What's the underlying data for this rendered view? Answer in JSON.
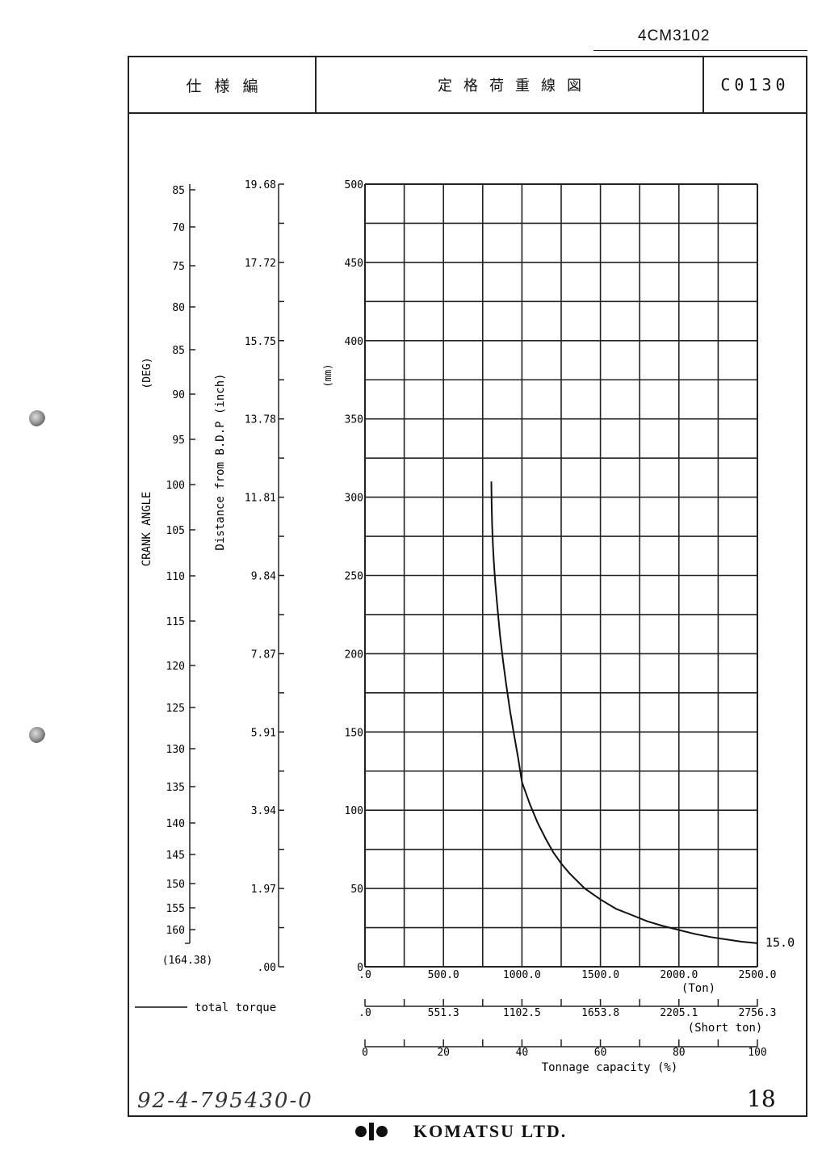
{
  "document": {
    "ref_number": "4CM3102",
    "category": "仕様編",
    "title": "定格荷重線図",
    "code": "C0130",
    "handwritten_number": "92-4-795430-0",
    "page_number": "18",
    "company": "KOMATSU LTD."
  },
  "chart_data": {
    "type": "line",
    "x": [
      805,
      807,
      810,
      815,
      820,
      830,
      845,
      860,
      880,
      900,
      925,
      950,
      975,
      1000,
      1050,
      1100,
      1150,
      1200,
      1250,
      1300,
      1350,
      1400,
      1500,
      1600,
      1700,
      1800,
      1900,
      2000,
      2100,
      2200,
      2300,
      2400,
      2500
    ],
    "y": [
      310,
      295,
      282,
      270,
      260,
      245,
      228,
      212,
      195,
      180,
      163,
      148,
      134,
      118,
      104,
      92,
      82,
      73,
      66,
      60,
      55,
      50,
      43,
      37,
      33,
      29,
      26,
      23.5,
      21,
      19,
      17.5,
      16,
      15
    ],
    "xlim": [
      0,
      2500
    ],
    "ylim": [
      0,
      500
    ],
    "grid": true,
    "y_ticks": [
      "0",
      "50",
      "100",
      "150",
      "200",
      "250",
      "300",
      "350",
      "400",
      "450",
      "500"
    ],
    "y_unit": "(mm)",
    "end_label": "15.0",
    "x_ticks": [
      ".0",
      "500.0",
      "1000.0",
      "1500.0",
      "2000.0",
      "2500.0"
    ],
    "x_unit": "(Ton)",
    "short_ton_ticks": [
      ".0",
      "551.3",
      "1102.5",
      "1653.8",
      "2205.1",
      "2756.3"
    ],
    "short_ton_unit": "(Short ton)",
    "capacity_ticks": [
      "0",
      "20",
      "40",
      "60",
      "80",
      "100"
    ],
    "capacity_label": "Tonnage capacity (%)",
    "inch_ticks": [
      ".00",
      "1.97",
      "3.94",
      "5.91",
      "7.87",
      "9.84",
      "11.81",
      "13.78",
      "15.75",
      "17.72",
      "19.68"
    ],
    "inch_label": "Distance from B.D.P (inch)",
    "crank_ticks": [
      "85",
      "70",
      "75",
      "80",
      "85",
      "90",
      "95",
      "100",
      "105",
      "110",
      "115",
      "120",
      "125",
      "130",
      "135",
      "140",
      "145",
      "150",
      "155",
      "160"
    ],
    "crank_bottom": "(164.38)",
    "crank_label": "CRANK ANGLE",
    "crank_unit": "(DEG)",
    "legend": "total torque"
  }
}
